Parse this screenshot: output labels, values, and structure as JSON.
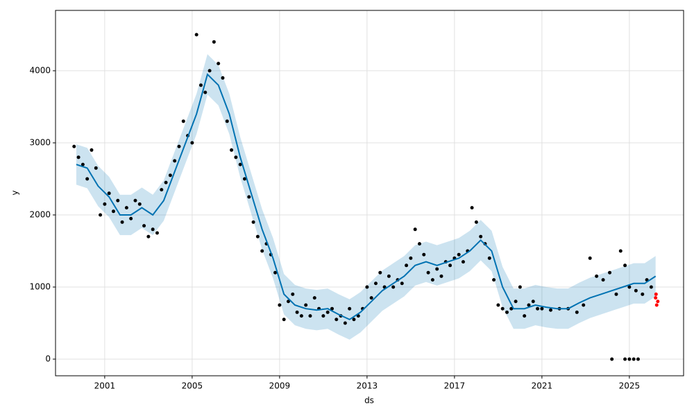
{
  "chart_data": {
    "type": "forecast",
    "x_label": "ds",
    "y_label": "y",
    "xlim": [
      1998.75,
      2027.48
    ],
    "ylim": [
      -231,
      4837
    ],
    "xticks": [
      2001,
      2005,
      2009,
      2013,
      2017,
      2021,
      2025
    ],
    "yticks": [
      0,
      1000,
      2000,
      3000,
      4000
    ],
    "grid": true,
    "forecast": {
      "color": "#0072B2",
      "band_color": "#0072B2",
      "x": [
        1999.7,
        2000.2,
        2000.7,
        2001.2,
        2001.7,
        2002.2,
        2002.7,
        2003.2,
        2003.7,
        2004.2,
        2004.7,
        2005.2,
        2005.7,
        2006.2,
        2006.7,
        2007.2,
        2007.7,
        2008.2,
        2008.7,
        2009.2,
        2009.7,
        2010.2,
        2010.7,
        2011.2,
        2011.7,
        2012.2,
        2012.7,
        2013.2,
        2013.7,
        2014.2,
        2014.7,
        2015.2,
        2015.7,
        2016.2,
        2016.7,
        2017.2,
        2017.7,
        2018.2,
        2018.7,
        2019.2,
        2019.7,
        2020.2,
        2020.7,
        2021.2,
        2021.7,
        2022.2,
        2022.7,
        2023.2,
        2023.7,
        2024.2,
        2024.7,
        2025.2,
        2025.7,
        2026.2
      ],
      "values": [
        2700,
        2650,
        2400,
        2250,
        2000,
        2000,
        2100,
        2000,
        2200,
        2600,
        3000,
        3400,
        3950,
        3800,
        3400,
        2800,
        2300,
        1800,
        1400,
        900,
        750,
        700,
        680,
        700,
        620,
        550,
        650,
        800,
        950,
        1050,
        1150,
        1300,
        1350,
        1300,
        1350,
        1400,
        1500,
        1650,
        1500,
        1000,
        700,
        700,
        750,
        720,
        700,
        700,
        780,
        850,
        900,
        950,
        1000,
        1050,
        1050,
        1150
      ],
      "lower": [
        2420,
        2370,
        2120,
        1970,
        1720,
        1720,
        1820,
        1720,
        1920,
        2320,
        2720,
        3120,
        3670,
        3520,
        3120,
        2520,
        2020,
        1520,
        1120,
        620,
        470,
        420,
        400,
        420,
        340,
        270,
        370,
        520,
        670,
        770,
        870,
        1020,
        1070,
        1020,
        1070,
        1120,
        1220,
        1370,
        1220,
        720,
        420,
        420,
        470,
        440,
        420,
        420,
        500,
        570,
        620,
        670,
        720,
        770,
        770,
        870
      ],
      "upper": [
        2980,
        2930,
        2680,
        2530,
        2280,
        2280,
        2380,
        2280,
        2480,
        2880,
        3280,
        3680,
        4230,
        4080,
        3680,
        3080,
        2580,
        2080,
        1680,
        1180,
        1030,
        980,
        960,
        980,
        900,
        830,
        930,
        1080,
        1230,
        1330,
        1430,
        1580,
        1630,
        1580,
        1630,
        1680,
        1780,
        1930,
        1780,
        1280,
        980,
        980,
        1030,
        1000,
        980,
        980,
        1060,
        1130,
        1180,
        1230,
        1280,
        1330,
        1330,
        1430
      ]
    },
    "observed": {
      "color": "#000000",
      "x": [
        1999.6,
        1999.8,
        2000.0,
        2000.2,
        2000.4,
        2000.6,
        2000.8,
        2001.0,
        2001.2,
        2001.4,
        2001.6,
        2001.8,
        2002.0,
        2002.2,
        2002.4,
        2002.6,
        2002.8,
        2003.0,
        2003.2,
        2003.4,
        2003.6,
        2003.8,
        2004.0,
        2004.2,
        2004.4,
        2004.6,
        2004.8,
        2005.0,
        2005.2,
        2005.4,
        2005.6,
        2005.8,
        2006.0,
        2006.2,
        2006.4,
        2006.6,
        2006.8,
        2007.0,
        2007.2,
        2007.4,
        2007.6,
        2007.8,
        2008.0,
        2008.2,
        2008.4,
        2008.6,
        2008.8,
        2009.0,
        2009.2,
        2009.4,
        2009.6,
        2009.8,
        2010.0,
        2010.2,
        2010.4,
        2010.6,
        2010.8,
        2011.0,
        2011.2,
        2011.4,
        2011.6,
        2011.8,
        2012.0,
        2012.2,
        2012.4,
        2012.6,
        2012.8,
        2013.0,
        2013.2,
        2013.4,
        2013.6,
        2013.8,
        2014.0,
        2014.2,
        2014.4,
        2014.6,
        2014.8,
        2015.0,
        2015.2,
        2015.4,
        2015.6,
        2015.8,
        2016.0,
        2016.2,
        2016.4,
        2016.6,
        2016.8,
        2017.0,
        2017.2,
        2017.4,
        2017.6,
        2017.8,
        2018.0,
        2018.2,
        2018.4,
        2018.6,
        2018.8,
        2019.0,
        2019.2,
        2019.4,
        2019.6,
        2019.8,
        2020.0,
        2020.2,
        2020.4,
        2020.6,
        2020.8,
        2021.0,
        2021.4,
        2021.8,
        2022.2,
        2022.6,
        2022.9,
        2023.2,
        2023.5,
        2023.8,
        2024.1,
        2024.4,
        2024.6,
        2024.8,
        2025.0,
        2025.3,
        2025.6,
        2025.8,
        2026.0,
        2024.2,
        2024.8,
        2025.0,
        2025.2,
        2025.4
      ],
      "values": [
        2950,
        2800,
        2700,
        2500,
        2900,
        2650,
        2000,
        2150,
        2300,
        2050,
        2200,
        1900,
        2100,
        1950,
        2200,
        2150,
        1850,
        1700,
        1800,
        1750,
        2350,
        2450,
        2550,
        2750,
        2950,
        3300,
        3100,
        3000,
        4500,
        3800,
        3700,
        4000,
        4400,
        4100,
        3900,
        3300,
        2900,
        2800,
        2700,
        2500,
        2250,
        1900,
        1700,
        1500,
        1600,
        1450,
        1200,
        750,
        550,
        800,
        900,
        650,
        600,
        750,
        600,
        850,
        700,
        600,
        650,
        700,
        550,
        600,
        500,
        700,
        550,
        600,
        700,
        1000,
        850,
        1050,
        1200,
        1000,
        1150,
        1000,
        1100,
        1050,
        1300,
        1400,
        1800,
        1600,
        1450,
        1200,
        1100,
        1250,
        1150,
        1350,
        1300,
        1400,
        1450,
        1350,
        1500,
        2100,
        1900,
        1700,
        1600,
        1400,
        1100,
        750,
        700,
        650,
        700,
        800,
        1000,
        600,
        750,
        800,
        700,
        700,
        680,
        700,
        700,
        650,
        750,
        1400,
        1150,
        1100,
        1200,
        900,
        1500,
        1300,
        1000,
        950,
        900,
        1100,
        1000,
        0,
        0,
        0,
        0,
        0
      ]
    },
    "test": {
      "color": "#ff0000",
      "x": [
        2026.2,
        2026.25,
        2026.3,
        2026.22
      ],
      "values": [
        850,
        750,
        800,
        900
      ]
    }
  }
}
